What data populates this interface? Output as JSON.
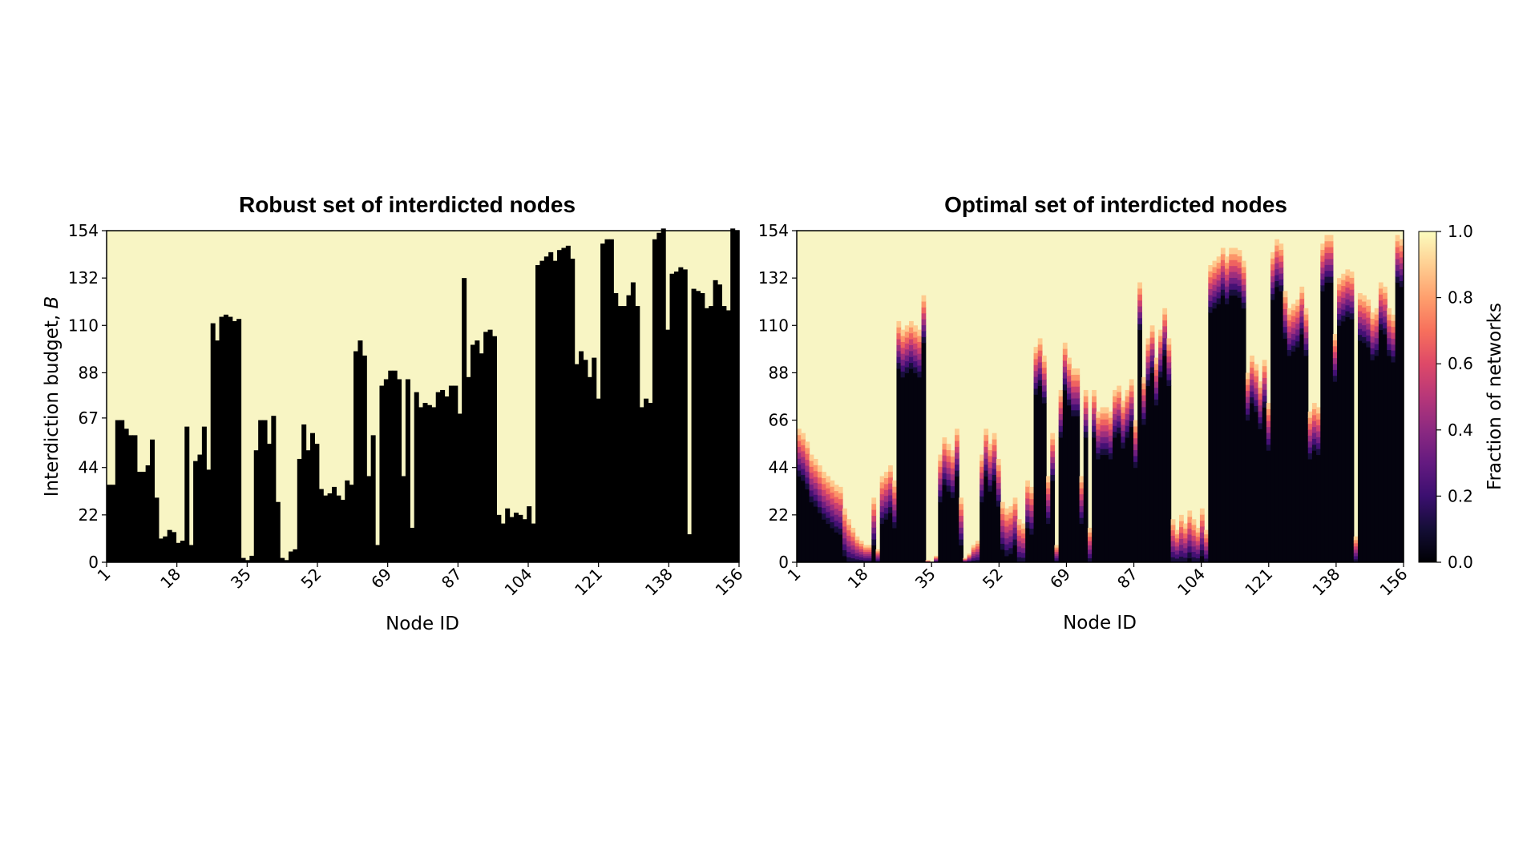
{
  "chart_data": [
    {
      "type": "heatmap",
      "title": "Robust set of interdicted nodes",
      "xlabel": "Node ID",
      "ylabel_text": "Interdiction budget, ",
      "ylabel_var": "B",
      "xticks": [
        "1",
        "18",
        "35",
        "52",
        "69",
        "87",
        "104",
        "121",
        "138",
        "156"
      ],
      "yticks": [
        "0",
        "22",
        "44",
        "67",
        "88",
        "110",
        "132",
        "154"
      ],
      "ylim": [
        0,
        154
      ],
      "colors": {
        "background": "#f8f5c4",
        "interdicted": "#000000"
      },
      "description_values_by_node_index_threshold": [
        36,
        36,
        66,
        66,
        62,
        59,
        59,
        42,
        42,
        45,
        57,
        30,
        11,
        12,
        15,
        14,
        9,
        10,
        63,
        8,
        47,
        50,
        63,
        43,
        111,
        103,
        114,
        115,
        114,
        112,
        113,
        2,
        1,
        3,
        52,
        66,
        66,
        55,
        68,
        28,
        2,
        1,
        5,
        6,
        48,
        64,
        52,
        60,
        55,
        34,
        31,
        32,
        35,
        31,
        29,
        38,
        36,
        98,
        103,
        96,
        40,
        59,
        8,
        82,
        85,
        89,
        89,
        85,
        40,
        85,
        16,
        79,
        72,
        74,
        73,
        72,
        79,
        80,
        77,
        82,
        82,
        69,
        132,
        86,
        101,
        103,
        97,
        107,
        108,
        105,
        22,
        18,
        25,
        21,
        23,
        22,
        20,
        26,
        18,
        138,
        140,
        142,
        144,
        140,
        145,
        146,
        147,
        141,
        92,
        98,
        94,
        86,
        95,
        76,
        148,
        150,
        150,
        125,
        119,
        119,
        124,
        130,
        119,
        72,
        76,
        74,
        150,
        153,
        155,
        108,
        134,
        135,
        137,
        136,
        13,
        127,
        126,
        125,
        118,
        119,
        131,
        129,
        119,
        117,
        155,
        154
      ]
    },
    {
      "type": "heatmap",
      "title": "Optimal set of interdicted nodes",
      "xlabel": "Node ID",
      "xticks": [
        "1",
        "18",
        "35",
        "52",
        "69",
        "87",
        "104",
        "121",
        "138",
        "156"
      ],
      "yticks": [
        "0",
        "22",
        "44",
        "66",
        "88",
        "110",
        "132",
        "154"
      ],
      "ylim": [
        0,
        154
      ],
      "colorbar": {
        "label": "Fraction of networks",
        "ticks": [
          "0.0",
          "0.2",
          "0.4",
          "0.6",
          "0.8",
          "1.0"
        ],
        "colormap": "magma"
      },
      "node_thresholds": [
        62,
        60,
        56,
        50,
        48,
        45,
        42,
        40,
        38,
        36,
        35,
        25,
        20,
        16,
        12,
        10,
        8,
        8,
        30,
        6,
        40,
        42,
        45,
        38,
        112,
        108,
        110,
        112,
        110,
        108,
        124,
        1,
        0,
        3,
        50,
        58,
        55,
        52,
        62,
        30,
        2,
        4,
        8,
        10,
        50,
        62,
        55,
        60,
        48,
        28,
        25,
        26,
        30,
        20,
        18,
        38,
        35,
        100,
        104,
        96,
        40,
        60,
        8,
        80,
        102,
        95,
        90,
        90,
        40,
        80,
        16,
        80,
        70,
        72,
        72,
        70,
        80,
        82,
        75,
        80,
        85,
        66,
        130,
        86,
        104,
        110,
        95,
        108,
        118,
        104,
        20,
        15,
        22,
        18,
        24,
        20,
        16,
        25,
        15,
        138,
        140,
        142,
        146,
        142,
        146,
        146,
        145,
        140,
        88,
        96,
        92,
        84,
        94,
        74,
        144,
        150,
        148,
        126,
        118,
        120,
        122,
        128,
        118,
        70,
        74,
        72,
        148,
        152,
        152,
        106,
        132,
        134,
        136,
        135,
        12,
        125,
        124,
        122,
        116,
        118,
        130,
        128,
        118,
        115,
        152,
        150
      ]
    }
  ]
}
